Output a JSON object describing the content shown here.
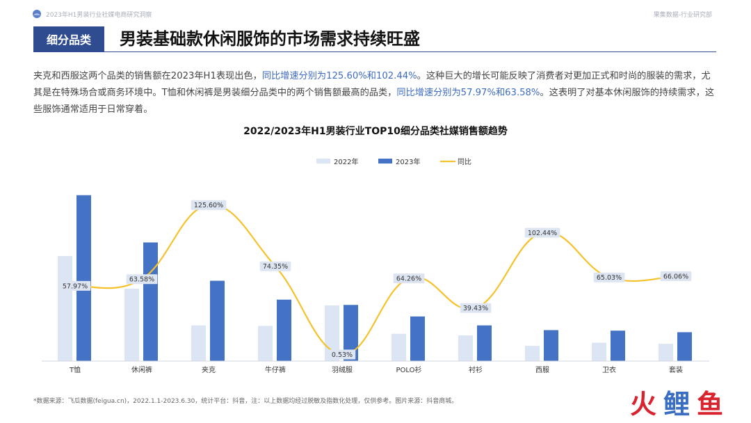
{
  "header": {
    "report_title": "2023年H1男装行业社媒电商研究洞察",
    "org": "果集数据-行业研究部"
  },
  "section": {
    "tag": "细分品类",
    "headline": "男装基础款休闲服饰的市场需求持续旺盛"
  },
  "paragraph": {
    "p1": "夹克和西服这两个品类的销售额在2023年H1表现出色，",
    "p2": "同比增速分别为125.60%和102.44%",
    "p3": "。这种巨大的增长可能反映了消费者对更加正式和时尚的服装的需求，尤其是在特殊场合或商务环境中。T恤和休闲裤是男装细分品类中的两个销售额最高的品类，",
    "p4": "同比增速分别为57.97%和63.58%",
    "p5": "。这表明了对基本休闲服饰的持续需求，这些服饰通常适用于日常穿着。"
  },
  "chart_data": {
    "type": "bar",
    "title": "2022/2023年H1男装行业TOP10细分品类社媒销售额趋势",
    "categories": [
      "T恤",
      "休闲裤",
      "夹克",
      "牛仔裤",
      "羽绒服",
      "POLO衫",
      "衬衫",
      "西服",
      "卫衣",
      "套装"
    ],
    "series": [
      {
        "name": "2022年",
        "type": "bar",
        "color": "#dce5f3",
        "values": [
          100,
          69,
          34,
          33.5,
          53,
          26,
          24.5,
          14.5,
          17.5,
          16.5
        ]
      },
      {
        "name": "2023年",
        "type": "bar",
        "color": "#4472c4",
        "values": [
          158,
          113,
          76.5,
          58.5,
          53.5,
          42.5,
          34,
          29.5,
          29,
          27.5
        ]
      },
      {
        "name": "同比",
        "type": "line",
        "color": "#f5c22b",
        "axis": "secondary",
        "values": [
          57.97,
          63.58,
          125.6,
          74.35,
          0.53,
          64.26,
          39.43,
          102.44,
          65.03,
          66.06
        ]
      }
    ],
    "line_labels": [
      "57.97%",
      "63.58%",
      "125.60%",
      "74.35%",
      "0.53%",
      "64.26%",
      "39.43%",
      "102.44%",
      "65.03%",
      "66.06%"
    ],
    "ylim": [
      0,
      165
    ],
    "y2lim": [
      -5,
      140
    ],
    "legend": "top-center",
    "grid": false
  },
  "footnote": "*数据来源：飞瓜数据(feigua.cn)，2022.1.1-2023.6.30，统计平台：抖音，注：以上数据均经过脱敏及指数化处理，仅供参考。图片来源：抖音商城。",
  "watermark": "火鲤鱼"
}
